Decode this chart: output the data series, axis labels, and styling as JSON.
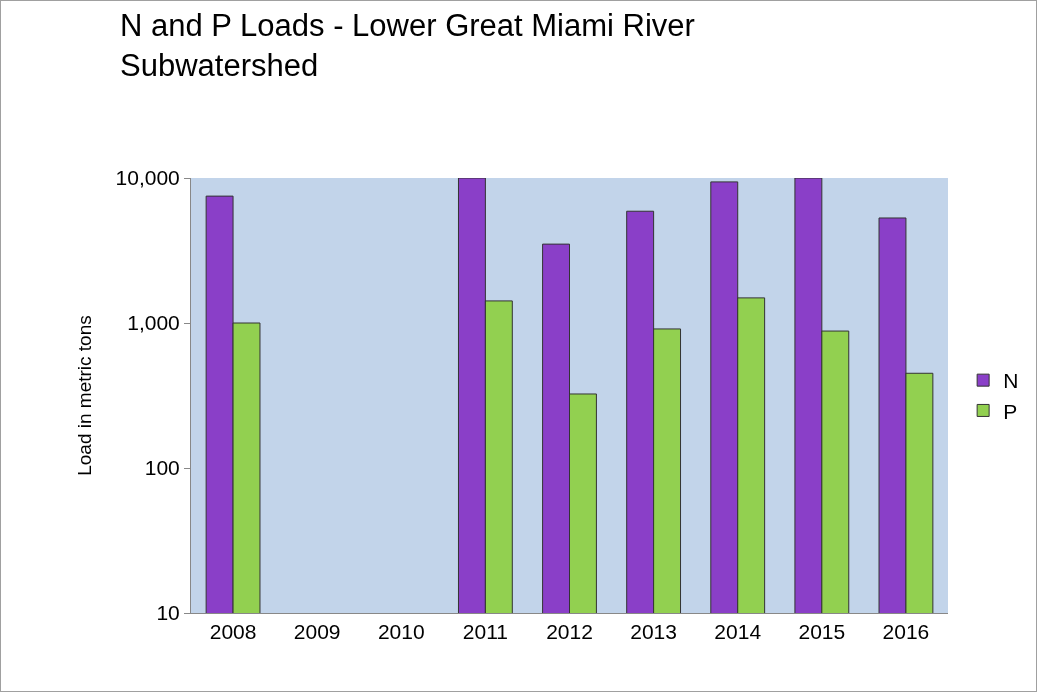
{
  "chart_data": {
    "type": "bar",
    "title": "N and P Loads - Lower Great Miami River\nSubwatershed",
    "ylabel": "Load in metric tons",
    "categories": [
      "2008",
      "2009",
      "2010",
      "2011",
      "2012",
      "2013",
      "2014",
      "2015",
      "2016"
    ],
    "series": [
      {
        "name": "N",
        "color": "#8a3fc8",
        "values": [
          7500,
          null,
          null,
          10000,
          3500,
          5900,
          9400,
          10000,
          5300
        ]
      },
      {
        "name": "P",
        "color": "#92d050",
        "values": [
          1000,
          null,
          null,
          1420,
          324,
          910,
          1490,
          880,
          450
        ]
      }
    ],
    "log": true,
    "ylim": [
      10,
      10000
    ],
    "yticks": [
      10,
      100,
      {
        "value": 1000,
        "label": "1,000"
      },
      {
        "value": 10000,
        "label": "10,000"
      }
    ],
    "legend": "right"
  }
}
